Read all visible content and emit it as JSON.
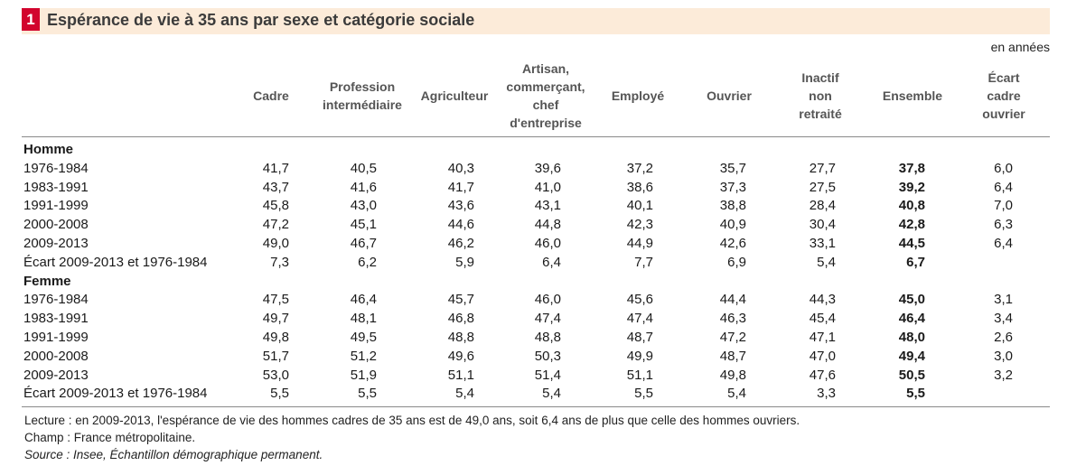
{
  "figure": {
    "number": "1",
    "title": "Espérance de vie à 35 ans par sexe et catégorie sociale",
    "unit": "en années"
  },
  "table": {
    "columns": [
      {
        "key": "cadre",
        "label": "Cadre"
      },
      {
        "key": "prof_inter",
        "label": "Profession\nintermédiaire"
      },
      {
        "key": "agriculteur",
        "label": "Agriculteur"
      },
      {
        "key": "artisan",
        "label": "Artisan,\ncommerçant,\nchef\nd'entreprise"
      },
      {
        "key": "employe",
        "label": "Employé"
      },
      {
        "key": "ouvrier",
        "label": "Ouvrier"
      },
      {
        "key": "inactif",
        "label": "Inactif\nnon\nretraité"
      },
      {
        "key": "ensemble",
        "label": "Ensemble"
      },
      {
        "key": "ecart",
        "label": "Écart\ncadre\nouvrier"
      }
    ],
    "sections": [
      {
        "title": "Homme",
        "rows": [
          {
            "label": "1976-1984",
            "values": [
              "41,7",
              "40,5",
              "40,3",
              "39,6",
              "37,2",
              "35,7",
              "27,7",
              "37,8",
              "6,0"
            ]
          },
          {
            "label": "1983-1991",
            "values": [
              "43,7",
              "41,6",
              "41,7",
              "41,0",
              "38,6",
              "37,3",
              "27,5",
              "39,2",
              "6,4"
            ]
          },
          {
            "label": "1991-1999",
            "values": [
              "45,8",
              "43,0",
              "43,6",
              "43,1",
              "40,1",
              "38,8",
              "28,4",
              "40,8",
              "7,0"
            ]
          },
          {
            "label": "2000-2008",
            "values": [
              "47,2",
              "45,1",
              "44,6",
              "44,8",
              "42,3",
              "40,9",
              "30,4",
              "42,8",
              "6,3"
            ]
          },
          {
            "label": "2009-2013",
            "values": [
              "49,0",
              "46,7",
              "46,2",
              "46,0",
              "44,9",
              "42,6",
              "33,1",
              "44,5",
              "6,4"
            ]
          },
          {
            "label": "Écart 2009-2013 et 1976-1984",
            "values": [
              "7,3",
              "6,2",
              "5,9",
              "6,4",
              "7,7",
              "6,9",
              "5,4",
              "6,7",
              ""
            ]
          }
        ]
      },
      {
        "title": "Femme",
        "rows": [
          {
            "label": "1976-1984",
            "values": [
              "47,5",
              "46,4",
              "45,7",
              "46,0",
              "45,6",
              "44,4",
              "44,3",
              "45,0",
              "3,1"
            ]
          },
          {
            "label": "1983-1991",
            "values": [
              "49,7",
              "48,1",
              "46,8",
              "47,4",
              "47,4",
              "46,3",
              "45,4",
              "46,4",
              "3,4"
            ]
          },
          {
            "label": "1991-1999",
            "values": [
              "49,8",
              "49,5",
              "48,8",
              "48,8",
              "48,7",
              "47,2",
              "47,1",
              "48,0",
              "2,6"
            ]
          },
          {
            "label": "2000-2008",
            "values": [
              "51,7",
              "51,2",
              "49,6",
              "50,3",
              "49,9",
              "48,7",
              "47,0",
              "49,4",
              "3,0"
            ]
          },
          {
            "label": "2009-2013",
            "values": [
              "53,0",
              "51,9",
              "51,1",
              "51,4",
              "51,1",
              "49,8",
              "47,6",
              "50,5",
              "3,2"
            ]
          },
          {
            "label": "Écart 2009-2013 et 1976-1984",
            "values": [
              "5,5",
              "5,5",
              "5,4",
              "5,4",
              "5,5",
              "5,4",
              "3,3",
              "5,5",
              ""
            ]
          }
        ]
      }
    ]
  },
  "notes": {
    "lecture": "Lecture : en 2009-2013, l'espérance de vie des hommes cadres de 35 ans est de 49,0 ans, soit 6,4 ans de plus que celle des hommes ouvriers.",
    "champ": "Champ : France métropolitaine.",
    "source": "Source : Insee, Échantillon démographique permanent."
  }
}
